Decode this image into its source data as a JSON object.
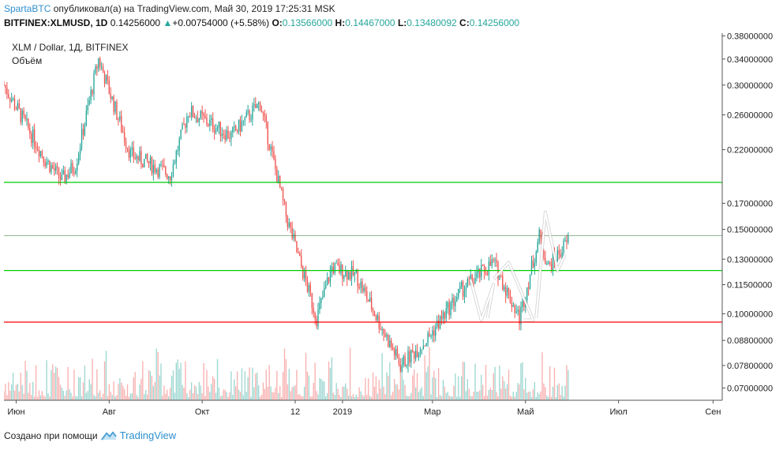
{
  "header": {
    "author": "SpartaBTC",
    "published_text": "опубликовал(а) на TradingView.com, Май 30, 2019 17:25:31 MSK",
    "symbol": "BITFINEX:XLMUSD, 1D",
    "price": "0.14256000",
    "change": "+0.00754000 (+5.58%)",
    "o_label": "O:",
    "o_value": "0.13566000",
    "h_label": "H:",
    "h_value": "0.14467000",
    "l_label": "L:",
    "l_value": "0.13480092",
    "c_label": "C:",
    "c_value": "0.14256000"
  },
  "legend": {
    "title": "XLM / Dollar, 1Д, BITFINEX",
    "volume": "Объём"
  },
  "footer": {
    "made_with": "Создано при помощи",
    "brand": "TradingView"
  },
  "colors": {
    "up": "#26a69a",
    "down": "#ef5350",
    "line_green": "#00cc00",
    "line_red": "#ff0000",
    "annotation": "#ffffff"
  },
  "chart_data": {
    "type": "candlestick",
    "y_scale": "log",
    "ylim": [
      0.066,
      0.385
    ],
    "y_ticks": [
      "0.38000000",
      "0.34000000",
      "0.30000000",
      "0.26000000",
      "0.22000000",
      "0.17000000",
      "0.15000000",
      "0.13000000",
      "0.11500000",
      "0.10000000",
      "0.08800000",
      "0.07800000",
      "0.07000000"
    ],
    "y_tick_values": [
      0.38,
      0.34,
      0.3,
      0.26,
      0.22,
      0.17,
      0.15,
      0.13,
      0.115,
      0.1,
      0.088,
      0.078,
      0.07
    ],
    "x_ticks": [
      "Июн",
      "Авг",
      "Окт",
      "12",
      "2019",
      "Мар",
      "Май",
      "Июл",
      "Сен"
    ],
    "x_tick_dates": [
      "2018-06-01",
      "2018-08-01",
      "2018-10-01",
      "2018-12-01",
      "2019-01-01",
      "2019-03-01",
      "2019-05-01",
      "2019-07-01",
      "2019-09-01"
    ],
    "x_range": [
      "2018-05-24",
      "2019-09-07"
    ],
    "horizontal_levels": [
      {
        "value": 0.18802363,
        "label": "0.18802363",
        "color": "#00cc00"
      },
      {
        "value": 0.12311521,
        "label": "0.12311521",
        "color": "#00cc00"
      },
      {
        "value": 0.0960804,
        "label": "0.09608040",
        "color": "#ff0000"
      }
    ],
    "trend_path": [
      {
        "date": "2018-05-24",
        "close": 0.3
      },
      {
        "date": "2018-06-20",
        "close": 0.21
      },
      {
        "date": "2018-07-01",
        "close": 0.19
      },
      {
        "date": "2018-07-10",
        "close": 0.205
      },
      {
        "date": "2018-07-25",
        "close": 0.34
      },
      {
        "date": "2018-08-15",
        "close": 0.215
      },
      {
        "date": "2018-09-10",
        "close": 0.195
      },
      {
        "date": "2018-09-22",
        "close": 0.265
      },
      {
        "date": "2018-10-20",
        "close": 0.235
      },
      {
        "date": "2018-11-08",
        "close": 0.275
      },
      {
        "date": "2018-11-25",
        "close": 0.16
      },
      {
        "date": "2018-12-15",
        "close": 0.098
      },
      {
        "date": "2018-12-25",
        "close": 0.125
      },
      {
        "date": "2019-01-10",
        "close": 0.12
      },
      {
        "date": "2019-02-08",
        "close": 0.078
      },
      {
        "date": "2019-02-25",
        "close": 0.088
      },
      {
        "date": "2019-03-20",
        "close": 0.112
      },
      {
        "date": "2019-04-10",
        "close": 0.128
      },
      {
        "date": "2019-04-27",
        "close": 0.098
      },
      {
        "date": "2019-05-10",
        "close": 0.145
      },
      {
        "date": "2019-05-16",
        "close": 0.125
      },
      {
        "date": "2019-05-29",
        "close": 0.142
      }
    ],
    "annotation_arrows": [
      [
        {
          "date": "2019-03-26",
          "price": 0.118
        },
        {
          "date": "2019-04-02",
          "price": 0.097
        },
        {
          "date": "2019-04-10",
          "price": 0.115
        },
        {
          "date": "2019-04-06",
          "price": 0.098
        }
      ],
      [
        {
          "date": "2019-04-10",
          "price": 0.118
        },
        {
          "date": "2019-04-20",
          "price": 0.128
        },
        {
          "date": "2019-05-06",
          "price": 0.097
        },
        {
          "date": "2019-04-30",
          "price": 0.097
        }
      ],
      [
        {
          "date": "2019-05-08",
          "price": 0.098
        },
        {
          "date": "2019-05-14",
          "price": 0.163
        },
        {
          "date": "2019-05-22",
          "price": 0.123
        },
        {
          "date": "2019-05-27",
          "price": 0.133
        }
      ]
    ]
  }
}
